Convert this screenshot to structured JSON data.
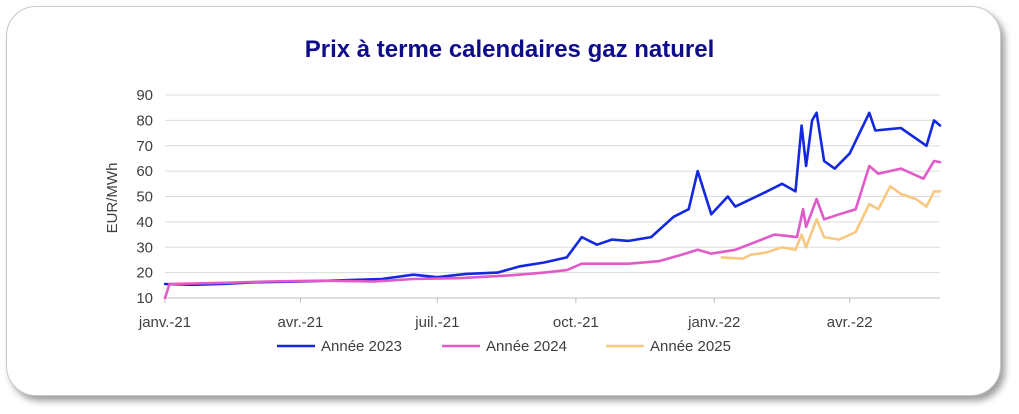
{
  "chart_data": {
    "type": "line",
    "title": "Prix à terme calendaires gaz naturel",
    "ylabel": "EUR/MWh",
    "xlabel": "",
    "ylim": [
      10,
      90
    ],
    "yticks": [
      10,
      20,
      30,
      40,
      50,
      60,
      70,
      80,
      90
    ],
    "xlim": [
      "2021-01-01",
      "2022-05-31"
    ],
    "xticks": [
      {
        "date": "2021-01-01",
        "label": "janv.-21"
      },
      {
        "date": "2021-04-01",
        "label": "avr.-21"
      },
      {
        "date": "2021-07-01",
        "label": "juil.-21"
      },
      {
        "date": "2021-10-01",
        "label": "oct.-21"
      },
      {
        "date": "2022-01-01",
        "label": "janv.-22"
      },
      {
        "date": "2022-04-01",
        "label": "avr.-22"
      }
    ],
    "grid": "horizontal",
    "legend_position": "bottom",
    "series": [
      {
        "name": "Année 2023",
        "color": "#1428e0",
        "points": [
          [
            "2021-01-01",
            15.5
          ],
          [
            "2021-01-20",
            15.2
          ],
          [
            "2021-02-10",
            15.6
          ],
          [
            "2021-03-01",
            16.2
          ],
          [
            "2021-04-01",
            16.5
          ],
          [
            "2021-05-01",
            17.0
          ],
          [
            "2021-05-25",
            17.5
          ],
          [
            "2021-06-15",
            19.2
          ],
          [
            "2021-07-01",
            18.2
          ],
          [
            "2021-07-20",
            19.5
          ],
          [
            "2021-08-10",
            20.0
          ],
          [
            "2021-08-25",
            22.5
          ],
          [
            "2021-09-10",
            24.0
          ],
          [
            "2021-09-25",
            26.0
          ],
          [
            "2021-10-05",
            34.0
          ],
          [
            "2021-10-15",
            31.0
          ],
          [
            "2021-10-25",
            33.0
          ],
          [
            "2021-11-05",
            32.5
          ],
          [
            "2021-11-20",
            34.0
          ],
          [
            "2021-12-05",
            42.0
          ],
          [
            "2021-12-15",
            45.0
          ],
          [
            "2021-12-21",
            60.0
          ],
          [
            "2021-12-30",
            43.0
          ],
          [
            "2022-01-10",
            50.0
          ],
          [
            "2022-01-15",
            46.0
          ],
          [
            "2022-02-05",
            52.0
          ],
          [
            "2022-02-15",
            55.0
          ],
          [
            "2022-02-24",
            52.0
          ],
          [
            "2022-02-28",
            78.0
          ],
          [
            "2022-03-03",
            62.0
          ],
          [
            "2022-03-07",
            80.0
          ],
          [
            "2022-03-10",
            83.0
          ],
          [
            "2022-03-15",
            64.0
          ],
          [
            "2022-03-22",
            61.0
          ],
          [
            "2022-04-01",
            67.0
          ],
          [
            "2022-04-14",
            83.0
          ],
          [
            "2022-04-18",
            76.0
          ],
          [
            "2022-05-05",
            77.0
          ],
          [
            "2022-05-22",
            70.0
          ],
          [
            "2022-05-27",
            80.0
          ],
          [
            "2022-05-31",
            78.0
          ]
        ]
      },
      {
        "name": "Année 2024",
        "color": "#e05ac8",
        "points": [
          [
            "2021-01-01",
            10.0
          ],
          [
            "2021-01-04",
            15.5
          ],
          [
            "2021-02-10",
            16.0
          ],
          [
            "2021-03-10",
            16.5
          ],
          [
            "2021-04-15",
            16.8
          ],
          [
            "2021-05-20",
            16.5
          ],
          [
            "2021-06-15",
            17.5
          ],
          [
            "2021-07-15",
            17.8
          ],
          [
            "2021-08-20",
            19.0
          ],
          [
            "2021-09-10",
            20.0
          ],
          [
            "2021-09-25",
            21.0
          ],
          [
            "2021-10-05",
            23.5
          ],
          [
            "2021-11-05",
            23.5
          ],
          [
            "2021-11-25",
            24.5
          ],
          [
            "2021-12-10",
            27.0
          ],
          [
            "2021-12-21",
            29.0
          ],
          [
            "2021-12-30",
            27.5
          ],
          [
            "2022-01-15",
            29.0
          ],
          [
            "2022-02-10",
            35.0
          ],
          [
            "2022-02-25",
            34.0
          ],
          [
            "2022-03-01",
            45.0
          ],
          [
            "2022-03-03",
            38.0
          ],
          [
            "2022-03-10",
            49.0
          ],
          [
            "2022-03-15",
            41.0
          ],
          [
            "2022-03-25",
            43.0
          ],
          [
            "2022-04-05",
            45.0
          ],
          [
            "2022-04-14",
            62.0
          ],
          [
            "2022-04-20",
            59.0
          ],
          [
            "2022-05-05",
            61.0
          ],
          [
            "2022-05-20",
            57.0
          ],
          [
            "2022-05-27",
            64.0
          ],
          [
            "2022-05-31",
            63.5
          ]
        ]
      },
      {
        "name": "Année 2025",
        "color": "#f8c880",
        "points": [
          [
            "2022-01-06",
            26.0
          ],
          [
            "2022-01-20",
            25.5
          ],
          [
            "2022-01-25",
            27.0
          ],
          [
            "2022-02-05",
            28.0
          ],
          [
            "2022-02-15",
            30.0
          ],
          [
            "2022-02-24",
            29.0
          ],
          [
            "2022-02-28",
            35.0
          ],
          [
            "2022-03-03",
            30.0
          ],
          [
            "2022-03-10",
            41.0
          ],
          [
            "2022-03-15",
            34.0
          ],
          [
            "2022-03-25",
            33.0
          ],
          [
            "2022-04-05",
            36.0
          ],
          [
            "2022-04-14",
            47.0
          ],
          [
            "2022-04-20",
            45.0
          ],
          [
            "2022-04-28",
            54.0
          ],
          [
            "2022-05-05",
            51.0
          ],
          [
            "2022-05-15",
            49.0
          ],
          [
            "2022-05-22",
            46.0
          ],
          [
            "2022-05-27",
            52.0
          ],
          [
            "2022-05-31",
            52.0
          ]
        ]
      }
    ]
  }
}
